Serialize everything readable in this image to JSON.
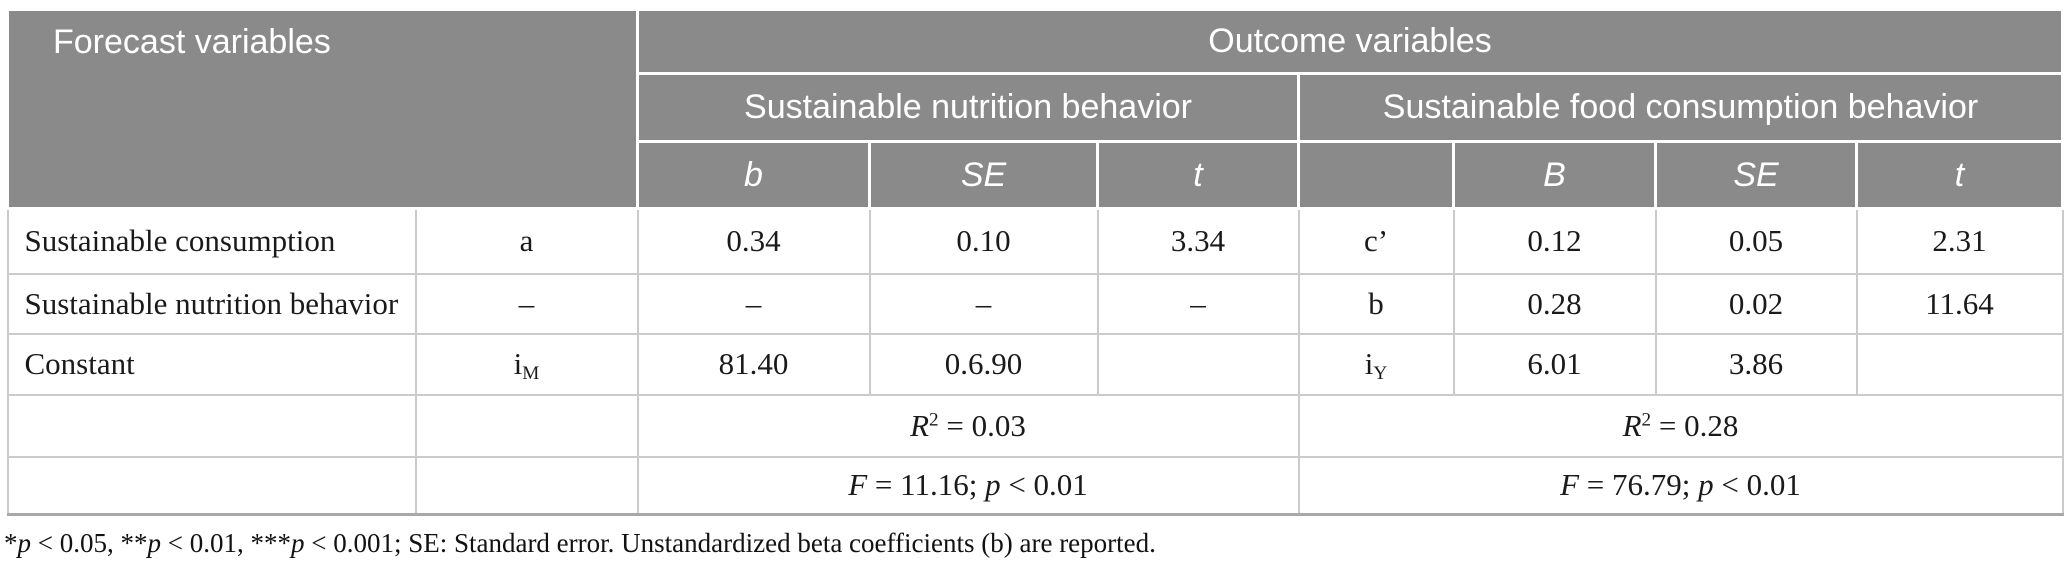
{
  "table": {
    "header": {
      "forecast_label": "Forecast variables",
      "outcome_label": "Outcome variables",
      "group1_label": "Sustainable nutrition behavior",
      "group2_label": "Sustainable food consumption behavior",
      "group1_cols": [
        "b",
        "SE",
        "t"
      ],
      "group2_cols": [
        "",
        "B",
        "SE",
        "t"
      ]
    },
    "rows": [
      {
        "label": "Sustainable consumption",
        "path1": "a",
        "g1": [
          "0.34",
          "0.10",
          "3.34"
        ],
        "path2": "c’",
        "g2": [
          "0.12",
          "0.05",
          "2.31"
        ]
      },
      {
        "label": "Sustainable nutrition behavior",
        "path1": "–",
        "g1": [
          "–",
          "–",
          "–"
        ],
        "path2": "b",
        "g2": [
          "0.28",
          "0.02",
          "11.64"
        ]
      },
      {
        "label": "Constant",
        "path1_rich": [
          {
            "t": "i"
          },
          {
            "t": "M",
            "s": "sub"
          }
        ],
        "g1": [
          "81.40",
          "0.6.90",
          ""
        ],
        "path2_rich": [
          {
            "t": "i"
          },
          {
            "t": "Y",
            "s": "sub"
          }
        ],
        "g2": [
          "6.01",
          "3.86",
          ""
        ]
      }
    ],
    "summary": {
      "r2_group1": [
        {
          "t": "R",
          "s": "i"
        },
        {
          "t": "2",
          "s": "sup"
        },
        {
          "t": " = 0.03"
        }
      ],
      "r2_group2": [
        {
          "t": "R",
          "s": "i"
        },
        {
          "t": "2",
          "s": "sup"
        },
        {
          "t": " = 0.28"
        }
      ],
      "f_group1": [
        {
          "t": "F",
          "s": "i"
        },
        {
          "t": " = 11.16; "
        },
        {
          "t": "p",
          "s": "i"
        },
        {
          "t": " < 0.01"
        }
      ],
      "f_group2": [
        {
          "t": "F",
          "s": "i"
        },
        {
          "t": " = 76.79; "
        },
        {
          "t": "p",
          "s": "i"
        },
        {
          "t": " < 0.01"
        }
      ]
    },
    "footnote": [
      {
        "t": "*"
      },
      {
        "t": "p",
        "s": "i"
      },
      {
        "t": " < 0.05, **"
      },
      {
        "t": "p",
        "s": "i"
      },
      {
        "t": " < 0.01, ***"
      },
      {
        "t": "p",
        "s": "i"
      },
      {
        "t": " < 0.001; SE: Standard error. Unstandardized beta coefficients (b) are reported."
      }
    ]
  },
  "colors": {
    "header_background": "#8a8a8a",
    "header_text": "#ffffff",
    "body_border": "#cbcbcb",
    "bottom_rule": "#a9a9a9"
  }
}
